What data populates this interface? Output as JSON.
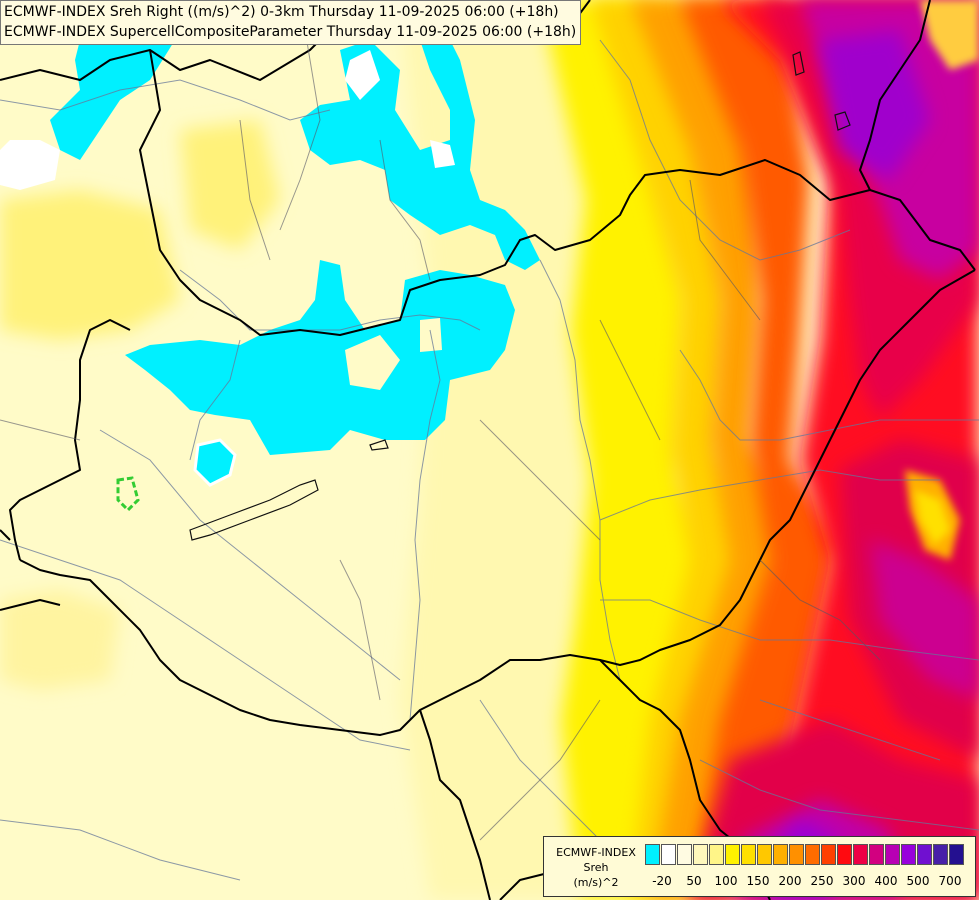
{
  "title_lines": [
    "ECMWF-INDEX Sreh Right ((m/s)^2) 0-3km Thursday 11-09-2025 06:00 (+18h)",
    "ECMWF-INDEX SupercellCompositeParameter Thursday 11-09-2025 06:00 (+18h)"
  ],
  "legend": {
    "source": "ECMWF-INDEX",
    "variable": "Sreh",
    "unit": "(m/s)^2",
    "colors": [
      "#00f0ff",
      "#ffffff",
      "#fffbe2",
      "#fff8bc",
      "#fff588",
      "#fff200",
      "#ffe000",
      "#ffc800",
      "#ffb000",
      "#ff9000",
      "#ff6c00",
      "#ff4000",
      "#ff0a10",
      "#ee0045",
      "#d20080",
      "#b800b4",
      "#9800dc",
      "#7010d0",
      "#4820a8",
      "#241090"
    ],
    "labels": [
      "-20",
      "50",
      "100",
      "150",
      "200",
      "250",
      "300",
      "400",
      "500",
      "700"
    ]
  }
}
